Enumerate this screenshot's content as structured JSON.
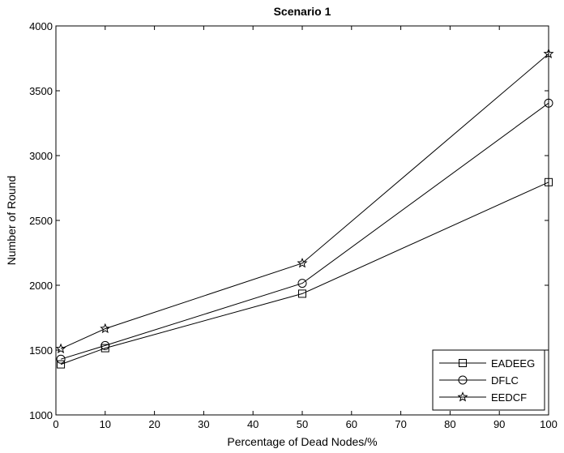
{
  "chart_data": {
    "type": "line",
    "title": "Scenario 1",
    "xlabel": "Percentage of Dead Nodes/%",
    "ylabel": "Number of Round",
    "xlim": [
      0,
      100
    ],
    "ylim": [
      1000,
      4000
    ],
    "xticks": [
      0,
      10,
      20,
      30,
      40,
      50,
      60,
      70,
      80,
      90,
      100
    ],
    "yticks": [
      1000,
      1500,
      2000,
      2500,
      3000,
      3500,
      4000
    ],
    "grid": false,
    "legend_position": "bottom-right",
    "x": [
      1,
      10,
      50,
      100
    ],
    "series": [
      {
        "name": "EADEEG",
        "marker": "square",
        "values": [
          1390,
          1515,
          1935,
          2795
        ]
      },
      {
        "name": "DFLC",
        "marker": "circle",
        "values": [
          1430,
          1535,
          2015,
          3405
        ]
      },
      {
        "name": "EEDCF",
        "marker": "star",
        "values": [
          1510,
          1665,
          2170,
          3785
        ]
      }
    ]
  }
}
